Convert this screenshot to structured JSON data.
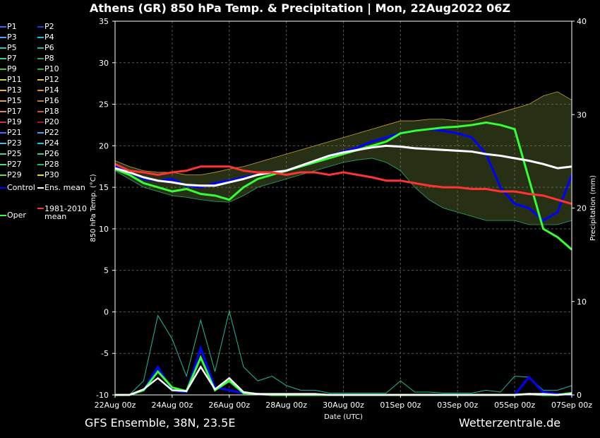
{
  "title": "Athens  (GR)  850 hPa Temp. & Precipitation | Mon, 22Aug2022 06Z",
  "footer": {
    "left": "GFS Ensemble, 38N, 23.5E",
    "right": "Wetterzentrale.de"
  },
  "legend": [
    {
      "label": "P1",
      "color": "#3366ff"
    },
    {
      "label": "P2",
      "color": "#1f3fd0"
    },
    {
      "label": "P3",
      "color": "#4aa3ff"
    },
    {
      "label": "P4",
      "color": "#2ab0e0"
    },
    {
      "label": "P5",
      "color": "#22c7c7"
    },
    {
      "label": "P6",
      "color": "#20b89a"
    },
    {
      "label": "P7",
      "color": "#33d18a"
    },
    {
      "label": "P8",
      "color": "#2aa86b"
    },
    {
      "label": "P9",
      "color": "#3ec93e"
    },
    {
      "label": "P10",
      "color": "#1eb51e"
    },
    {
      "label": "P11",
      "color": "#c8d040"
    },
    {
      "label": "P12",
      "color": "#e0c050"
    },
    {
      "label": "P13",
      "color": "#e6b830"
    },
    {
      "label": "P14",
      "color": "#d89020"
    },
    {
      "label": "P15",
      "color": "#e09a70"
    },
    {
      "label": "P16",
      "color": "#c07850"
    },
    {
      "label": "P17",
      "color": "#e88060"
    },
    {
      "label": "P18",
      "color": "#d05030"
    },
    {
      "label": "P19",
      "color": "#d03030"
    },
    {
      "label": "P20",
      "color": "#a01818"
    },
    {
      "label": "P21",
      "color": "#3070ff"
    },
    {
      "label": "P22",
      "color": "#3aa0ff"
    },
    {
      "label": "P23",
      "color": "#50b8e0"
    },
    {
      "label": "P24",
      "color": "#30c0d0"
    },
    {
      "label": "P25",
      "color": "#40d0b0"
    },
    {
      "label": "P26",
      "color": "#30d090"
    },
    {
      "label": "P27",
      "color": "#50e060"
    },
    {
      "label": "P28",
      "color": "#20c060"
    },
    {
      "label": "P29",
      "color": "#60e040"
    },
    {
      "label": "P30",
      "color": "#f0e000"
    },
    {
      "label": "Control",
      "color": "#0000ff"
    },
    {
      "label": "Ens. mean",
      "color": "#ffffff"
    },
    {
      "label": "1981-2010 mean",
      "color": "#ff3333"
    },
    {
      "label": "Oper",
      "color": "#33ff33"
    }
  ],
  "chart_data": {
    "type": "line",
    "x": [
      "22Aug 00z",
      "22Aug 12z",
      "23Aug 00z",
      "23Aug 12z",
      "24Aug 00z",
      "24Aug 12z",
      "25Aug 00z",
      "25Aug 12z",
      "26Aug 00z",
      "26Aug 12z",
      "27Aug 00z",
      "27Aug 12z",
      "28Aug 00z",
      "28Aug 12z",
      "29Aug 00z",
      "29Aug 12z",
      "30Aug 00z",
      "30Aug 12z",
      "31Aug 00z",
      "31Aug 12z",
      "01Sep 00z",
      "01Sep 12z",
      "02Sep 00z",
      "02Sep 12z",
      "03Sep 00z",
      "03Sep 12z",
      "04Sep 00z",
      "04Sep 12z",
      "05Sep 00z",
      "05Sep 12z",
      "06Sep 00z",
      "06Sep 12z",
      "07Sep 00z"
    ],
    "x_tick_labels": [
      "22Aug 00z",
      "24Aug 00z",
      "26Aug 00z",
      "28Aug 00z",
      "30Aug 00z",
      "01Sep 00z",
      "03Sep 00z",
      "05Sep 00z",
      "07Sep 00z"
    ],
    "xlabel": "Date (UTC)",
    "ylabel": "850 hPa Temp. (°C)",
    "y2label": "Precipitation (mm)",
    "ylim": [
      -10,
      35
    ],
    "y_ticks": [
      -10,
      -5,
      0,
      5,
      10,
      15,
      20,
      25,
      30,
      35
    ],
    "y2lim": [
      0,
      40
    ],
    "y2_ticks": [
      0,
      10,
      20,
      30,
      40
    ],
    "grid": true,
    "temperature_series": [
      {
        "name": "Control",
        "values": [
          17.5,
          16.8,
          16.0,
          15.8,
          16.0,
          15.2,
          15.0,
          15.5,
          15.8,
          16.2,
          16.5,
          16.8,
          17.0,
          17.5,
          18.0,
          18.8,
          19.3,
          19.8,
          20.5,
          21.0,
          21.5,
          21.8,
          22.0,
          21.8,
          21.5,
          21.0,
          19.0,
          15.0,
          13.0,
          12.5,
          11.0,
          12.0,
          16.5
        ]
      },
      {
        "name": "Oper",
        "values": [
          17.2,
          16.5,
          15.5,
          15.0,
          14.5,
          14.8,
          14.2,
          14.0,
          13.5,
          15.0,
          16.0,
          16.5,
          17.0,
          17.5,
          18.0,
          18.5,
          19.0,
          19.5,
          20.0,
          20.5,
          21.5,
          21.8,
          22.0,
          22.2,
          22.3,
          22.5,
          22.8,
          22.5,
          22.0,
          16.0,
          10.0,
          9.0,
          7.5
        ]
      },
      {
        "name": "Ens. mean",
        "values": [
          17.3,
          16.8,
          16.2,
          15.8,
          15.6,
          15.3,
          15.2,
          15.2,
          15.6,
          16.0,
          16.5,
          16.8,
          17.0,
          17.6,
          18.2,
          18.8,
          19.2,
          19.5,
          19.8,
          20.0,
          19.9,
          19.7,
          19.6,
          19.5,
          19.4,
          19.3,
          19.0,
          18.8,
          18.5,
          18.2,
          17.8,
          17.3,
          17.5
        ]
      },
      {
        "name": "1981-2010 mean",
        "values": [
          17.8,
          17.0,
          16.8,
          16.5,
          16.8,
          17.0,
          17.5,
          17.5,
          17.5,
          17.0,
          16.8,
          16.8,
          16.5,
          16.8,
          16.8,
          16.5,
          16.8,
          16.5,
          16.2,
          15.8,
          15.8,
          15.5,
          15.2,
          15.0,
          15.0,
          14.8,
          14.8,
          14.5,
          14.5,
          14.2,
          14.0,
          13.5,
          13.0
        ]
      }
    ],
    "member_spread": {
      "min": [
        17.0,
        16.0,
        15.0,
        14.5,
        14.0,
        13.8,
        13.5,
        13.3,
        13.2,
        14.0,
        15.0,
        15.5,
        16.0,
        16.5,
        17.0,
        17.5,
        18.0,
        18.3,
        18.5,
        18.0,
        17.0,
        15.0,
        13.5,
        12.5,
        12.0,
        11.5,
        11.0,
        11.0,
        11.0,
        10.5,
        10.5,
        10.5,
        11.0
      ],
      "max": [
        18.2,
        17.5,
        17.0,
        16.8,
        16.8,
        16.5,
        16.5,
        16.8,
        17.2,
        17.5,
        18.0,
        18.5,
        19.0,
        19.5,
        20.0,
        20.5,
        21.0,
        21.5,
        22.0,
        22.5,
        23.0,
        23.0,
        23.2,
        23.2,
        23.0,
        23.0,
        23.5,
        24.0,
        24.5,
        25.0,
        26.0,
        26.5,
        25.5
      ]
    },
    "precipitation_series": [
      {
        "name": "Control",
        "values": [
          0,
          0,
          0.5,
          3.0,
          0.5,
          0.3,
          5.0,
          0.8,
          0.5,
          0.2,
          0.1,
          0,
          0,
          0,
          0,
          0,
          0,
          0,
          0,
          0,
          0,
          0,
          0,
          0,
          0,
          0,
          0,
          0,
          0,
          1.9,
          0.3,
          0.1,
          0
        ]
      },
      {
        "name": "Oper",
        "values": [
          0,
          0,
          0.5,
          2.5,
          0.8,
          0.4,
          4.0,
          0.5,
          1.5,
          0.2,
          0.1,
          0,
          0,
          0,
          0,
          0,
          0,
          0,
          0,
          0,
          0,
          0,
          0,
          0,
          0,
          0,
          0,
          0,
          0,
          0.1,
          0,
          0,
          0.2
        ]
      },
      {
        "name": "Ens. mean",
        "values": [
          0,
          0,
          0.6,
          1.8,
          0.5,
          0.4,
          3.0,
          0.6,
          1.8,
          0.3,
          0.1,
          0.1,
          0.1,
          0.1,
          0.1,
          0,
          0,
          0,
          0,
          0,
          0,
          0,
          0,
          0,
          0,
          0,
          0,
          0,
          0,
          0.1,
          0.1,
          0,
          0.1
        ]
      }
    ],
    "precipitation_max": [
      0,
      0,
      1.5,
      8.5,
      6.0,
      2.0,
      8.0,
      2.5,
      9.0,
      3.0,
      1.5,
      2.0,
      1.0,
      0.5,
      0.5,
      0.2,
      0.2,
      0.2,
      0.2,
      0.2,
      1.5,
      0.3,
      0.3,
      0.2,
      0.2,
      0.2,
      0.5,
      0.3,
      2.0,
      1.9,
      0.5,
      0.5,
      1.0
    ]
  }
}
